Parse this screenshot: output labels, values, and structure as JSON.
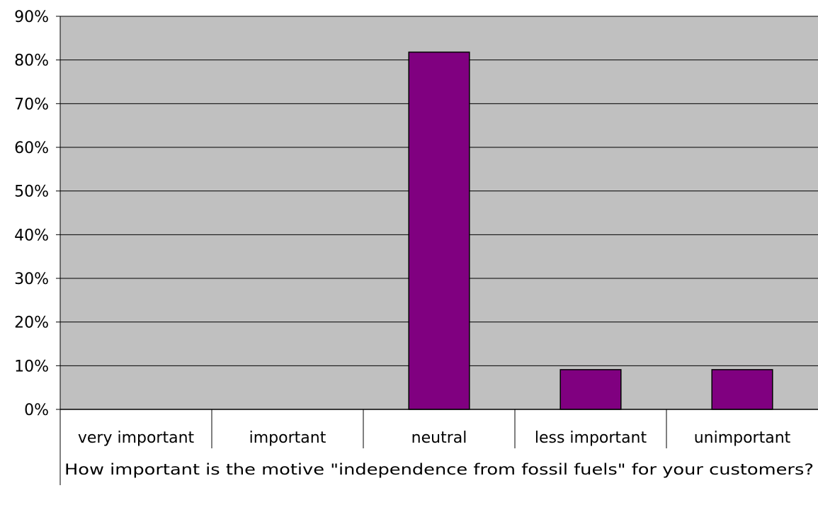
{
  "chart_data": {
    "type": "bar",
    "categories": [
      "very important",
      "important",
      "neutral",
      "less important",
      "unimportant"
    ],
    "values": [
      0,
      0,
      81.8,
      9.1,
      9.1
    ],
    "ylim": [
      0,
      90
    ],
    "yticks": [
      0,
      10,
      20,
      30,
      40,
      50,
      60,
      70,
      80,
      90
    ],
    "ytick_labels": [
      "0%",
      "10%",
      "20%",
      "30%",
      "40%",
      "50%",
      "60%",
      "70%",
      "80%",
      "90%"
    ],
    "xlabel": "How important is the motive \"independence from fossil fuels\" for your customers?",
    "ylabel": "",
    "title": "",
    "grid": true,
    "legend": "none",
    "colors": {
      "plot_background": "#c0c0c0",
      "bar_fill": "#800080",
      "bar_stroke": "#000000",
      "gridline": "#000000"
    }
  }
}
